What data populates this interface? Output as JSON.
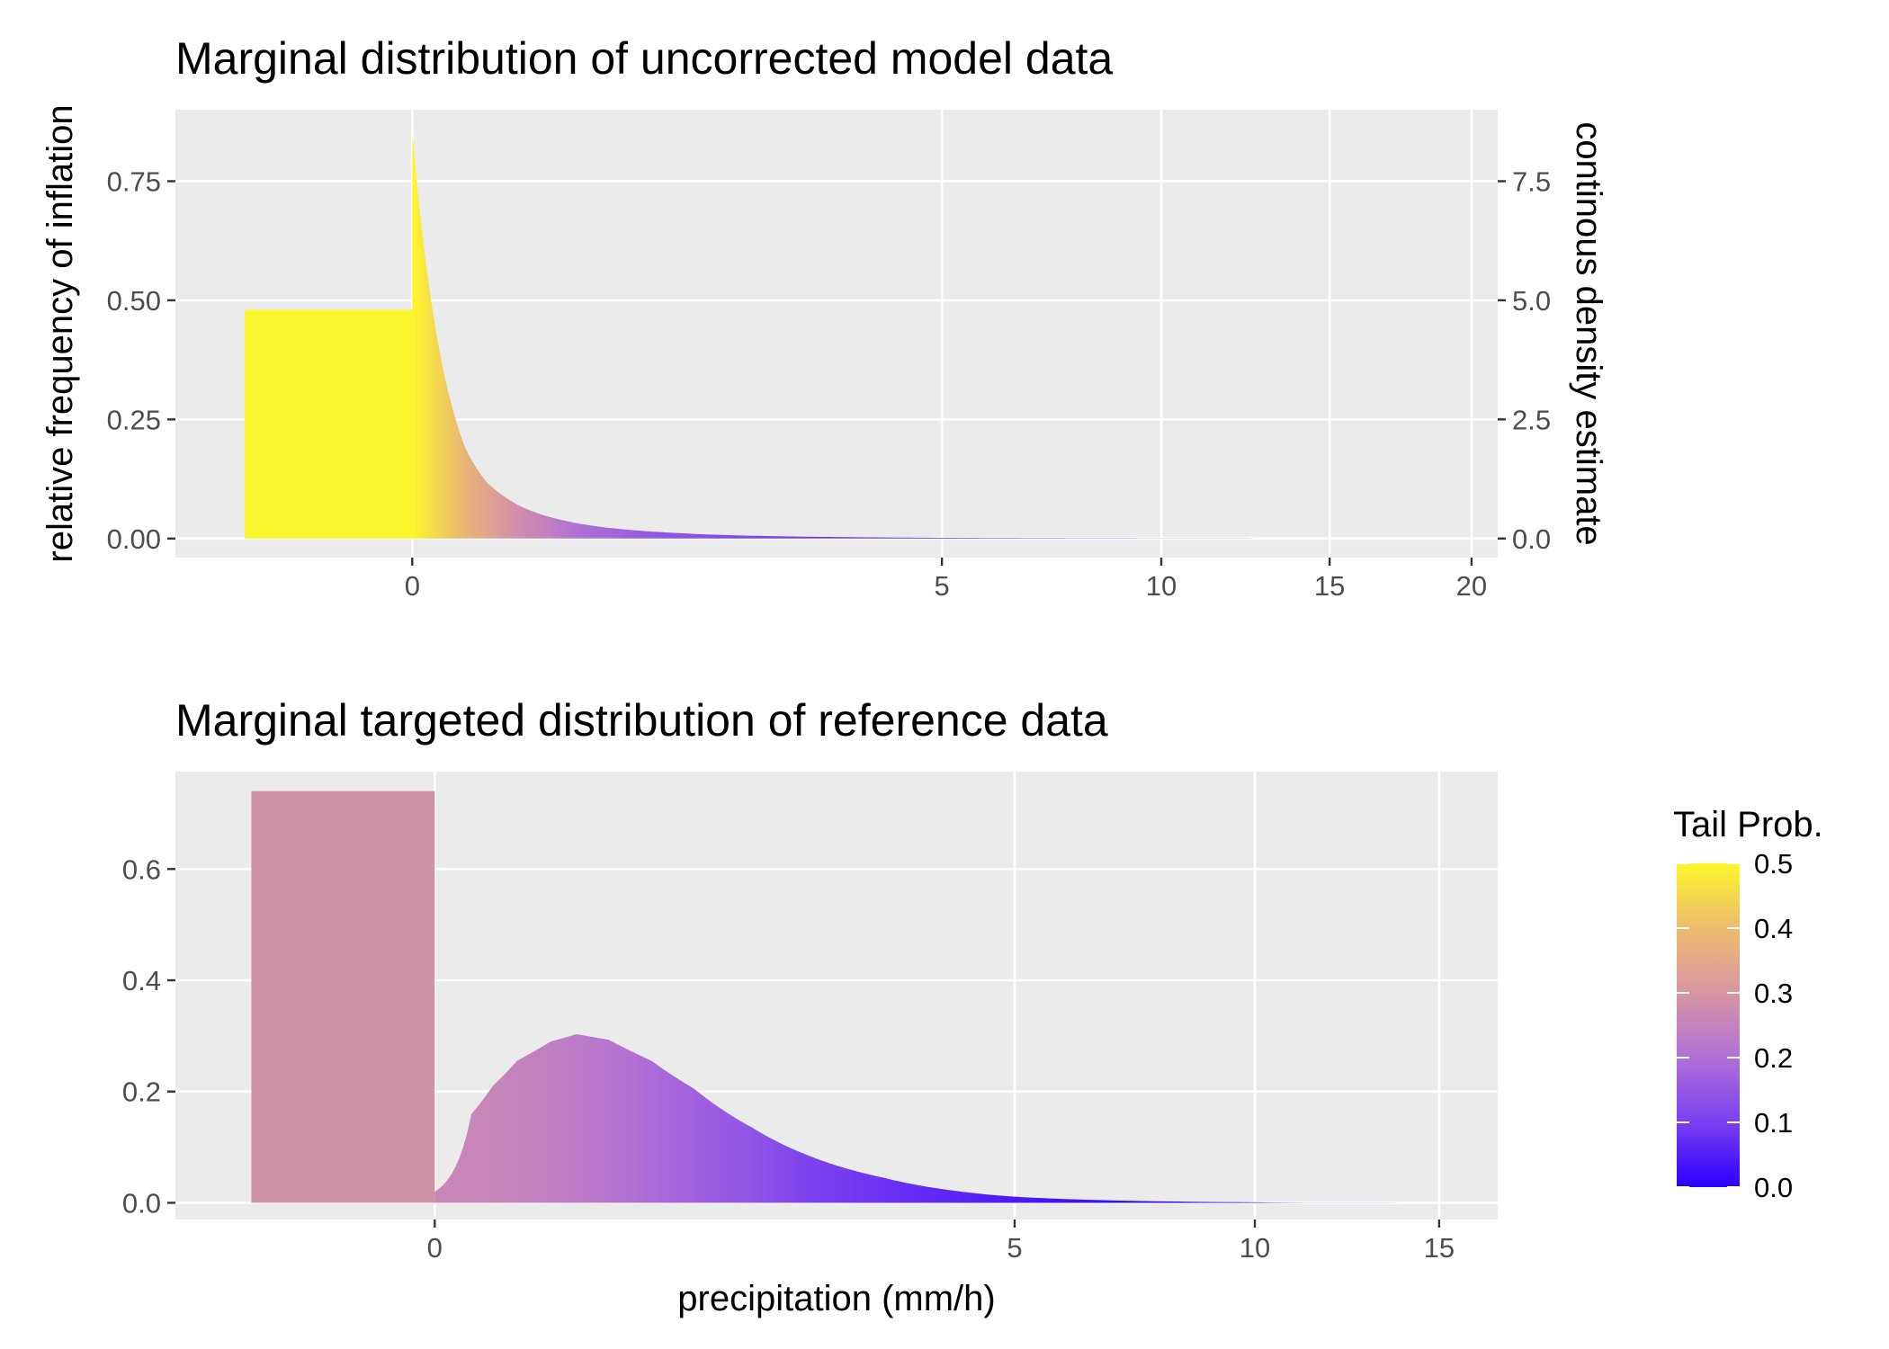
{
  "chart_data": [
    {
      "type": "area",
      "title": "Marginal distribution of uncorrected model data",
      "xlabel": "",
      "ylabel": "relative frequency of inflation",
      "ylabel_right": "continous density estimate",
      "x_scale": "sqrt",
      "xlim": [
        -1.0,
        21.0
      ],
      "x_ticks": [
        0,
        5,
        10,
        15,
        20
      ],
      "x_tick_labels": [
        "0",
        "5",
        "10",
        "15",
        "20"
      ],
      "ylim": [
        -0.04,
        0.9
      ],
      "y_ticks": [
        0.0,
        0.25,
        0.5,
        0.75
      ],
      "y_tick_labels": [
        "0.00",
        "0.25",
        "0.50",
        "0.75"
      ],
      "y_right_ticks": [
        0.0,
        2.5,
        5.0,
        7.5
      ],
      "y_right_tick_labels": [
        "0.0",
        "2.5",
        "5.0",
        "7.5"
      ],
      "y_right_scale_factor": 10,
      "grid": true,
      "inflation_bar": {
        "x_range": [
          -0.5,
          0
        ],
        "value": 0.48,
        "color": "#fbf52b"
      },
      "density_x": [
        0.0,
        0.05,
        0.1,
        0.2,
        0.3,
        0.5,
        0.7,
        1.0,
        1.5,
        2.0,
        3.0,
        4.0,
        5.0,
        7.0,
        10.0,
        15.0,
        17.5
      ],
      "density_y": [
        0.85,
        0.19,
        0.117,
        0.07,
        0.05,
        0.031,
        0.022,
        0.015,
        0.009,
        0.006,
        0.0035,
        0.0022,
        0.0015,
        0.0008,
        0.0004,
        0.00015,
        0.0001
      ],
      "tail_prob": [
        0.5,
        0.38,
        0.34,
        0.28,
        0.25,
        0.2,
        0.18,
        0.15,
        0.13,
        0.11,
        0.09,
        0.07,
        0.06,
        0.04,
        0.025,
        0.01,
        0.0
      ]
    },
    {
      "type": "area",
      "title": "Marginal targeted distribution of reference data",
      "xlabel": "precipitation (mm/h)",
      "ylabel": "",
      "x_scale": "sqrt",
      "xlim": [
        -1.0,
        16.8
      ],
      "x_ticks": [
        0,
        5,
        10,
        15
      ],
      "x_tick_labels": [
        "0",
        "5",
        "10",
        "15"
      ],
      "ylim": [
        -0.03,
        0.775
      ],
      "y_ticks": [
        0.0,
        0.2,
        0.4,
        0.6
      ],
      "y_tick_labels": [
        "0.0",
        "0.2",
        "0.4",
        "0.6"
      ],
      "grid": true,
      "inflation_bar": {
        "x_range": [
          -0.5,
          0
        ],
        "value": 0.74,
        "color": "#cf93a8"
      },
      "density_x": [
        0.0,
        0.02,
        0.05,
        0.1,
        0.2,
        0.3,
        0.45,
        0.7,
        1.0,
        1.5,
        2.0,
        3.0,
        4.0,
        5.0,
        7.0,
        10.0,
        15.5
      ],
      "density_y": [
        0.02,
        0.16,
        0.21,
        0.255,
        0.29,
        0.303,
        0.293,
        0.255,
        0.205,
        0.135,
        0.09,
        0.045,
        0.022,
        0.011,
        0.004,
        0.001,
        0.0
      ],
      "tail_prob": [
        0.26,
        0.26,
        0.255,
        0.25,
        0.24,
        0.23,
        0.215,
        0.19,
        0.17,
        0.14,
        0.11,
        0.08,
        0.06,
        0.04,
        0.02,
        0.008,
        0.0
      ]
    }
  ],
  "legend": {
    "title": "Tail Prob.",
    "range": [
      0.0,
      0.5
    ],
    "ticks": [
      0.0,
      0.1,
      0.2,
      0.3,
      0.4,
      0.5
    ],
    "tick_labels": [
      "0.0",
      "0.1",
      "0.2",
      "0.3",
      "0.4",
      "0.5"
    ],
    "gradient_stops": [
      {
        "value": 0.0,
        "color": "#2b00ff"
      },
      {
        "value": 0.1,
        "color": "#7b3ff0"
      },
      {
        "value": 0.2,
        "color": "#b070d6"
      },
      {
        "value": 0.3,
        "color": "#d896a2"
      },
      {
        "value": 0.4,
        "color": "#ecbc6e"
      },
      {
        "value": 0.5,
        "color": "#fdf62a"
      }
    ]
  },
  "colors": {
    "panel_background": "#ebebeb",
    "grid": "#ffffff",
    "tick_text": "#4d4d4d",
    "tick_mark": "#333333"
  }
}
